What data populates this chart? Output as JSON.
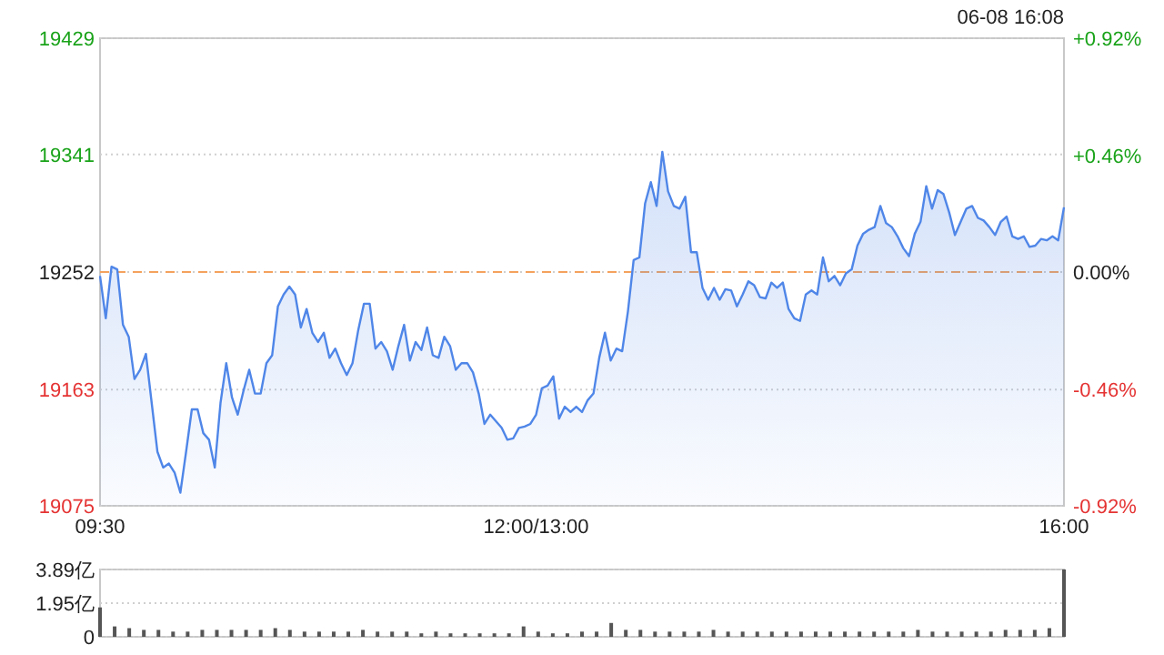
{
  "chart_data": [
    {
      "type": "area",
      "annotations": [
        "06-08 16:08"
      ],
      "categories": [
        "09:30",
        null,
        null,
        null,
        null,
        null,
        null,
        null,
        null,
        null,
        null,
        null,
        null,
        null,
        null,
        null,
        null,
        null,
        null,
        null,
        null,
        null,
        null,
        null,
        null,
        null,
        null,
        null,
        null,
        null,
        null,
        null,
        null,
        null,
        null,
        null,
        null,
        null,
        null,
        null,
        null,
        null,
        null,
        null,
        null,
        null,
        null,
        null,
        null,
        null,
        null,
        null,
        null,
        null,
        null,
        null,
        null,
        null,
        null,
        null,
        null,
        null,
        null,
        null,
        null,
        null,
        null,
        null,
        null,
        null,
        null,
        null,
        null,
        null,
        null,
        null,
        "12:00/13:00",
        null,
        null,
        null,
        null,
        null,
        null,
        null,
        null,
        null,
        null,
        null,
        null,
        null,
        null,
        null,
        null,
        null,
        null,
        null,
        null,
        null,
        null,
        null,
        null,
        null,
        null,
        null,
        null,
        null,
        null,
        null,
        null,
        null,
        null,
        null,
        null,
        null,
        null,
        null,
        null,
        null,
        null,
        null,
        null,
        null,
        null,
        null,
        null,
        null,
        null,
        null,
        null,
        null,
        null,
        null,
        null,
        null,
        null,
        null,
        null,
        null,
        null,
        null,
        null,
        null,
        null,
        null,
        null,
        null,
        null,
        null,
        null,
        null,
        null,
        null,
        null,
        null,
        null,
        null,
        null,
        null,
        null,
        null,
        null,
        null,
        null,
        null,
        null,
        null,
        null,
        null,
        "16:00"
      ],
      "series": [
        {
          "color": "#4f86e8",
          "values": [
            19249,
            19217,
            19256,
            19254,
            19212,
            19203,
            19171,
            19178,
            19190,
            19153,
            19116,
            19104,
            19107,
            19100,
            19085,
            19116,
            19148,
            19148,
            19130,
            19125,
            19104,
            19153,
            19183,
            19157,
            19144,
            19162,
            19178,
            19160,
            19160,
            19183,
            19189,
            19226,
            19235,
            19241,
            19235,
            19210,
            19224,
            19206,
            19199,
            19206,
            19187,
            19194,
            19183,
            19174,
            19183,
            19208,
            19228,
            19228,
            19194,
            19199,
            19192,
            19178,
            19196,
            19212,
            19185,
            19199,
            19193,
            19210,
            19189,
            19187,
            19203,
            19196,
            19178,
            19183,
            19183,
            19176,
            19160,
            19137,
            19144,
            19139,
            19134,
            19125,
            19126,
            19134,
            19135,
            19137,
            19144,
            19164,
            19166,
            19173,
            19141,
            19150,
            19146,
            19150,
            19146,
            19155,
            19160,
            19187,
            19206,
            19185,
            19194,
            19192,
            19222,
            19261,
            19263,
            19304,
            19320,
            19302,
            19343,
            19313,
            19302,
            19300,
            19309,
            19267,
            19267,
            19240,
            19231,
            19240,
            19231,
            19239,
            19238,
            19226,
            19235,
            19245,
            19242,
            19233,
            19232,
            19244,
            19240,
            19244,
            19224,
            19217,
            19215,
            19235,
            19238,
            19235,
            19263,
            19245,
            19249,
            19242,
            19251,
            19254,
            19272,
            19281,
            19284,
            19286,
            19302,
            19289,
            19286,
            19279,
            19270,
            19264,
            19281,
            19290,
            19317,
            19300,
            19314,
            19311,
            19297,
            19280,
            19290,
            19300,
            19302,
            19293,
            19291,
            19286,
            19280,
            19290,
            19294,
            19279,
            19277,
            19279,
            19271,
            19272,
            19277,
            19276,
            19279,
            19276,
            19301
          ]
        }
      ],
      "ylim": [
        19075,
        19429
      ],
      "yticks": [
        19075,
        19163,
        19252,
        19341,
        19429
      ],
      "y2lim": [
        -0.92,
        0.92
      ],
      "y2ticks": [
        {
          "value": -0.92,
          "label": "-0.92%"
        },
        {
          "value": -0.46,
          "label": "-0.46%"
        },
        {
          "value": 0,
          "label": "0.00%"
        },
        {
          "value": 0.46,
          "label": "+0.46%"
        },
        {
          "value": 0.92,
          "label": "+0.92%"
        }
      ],
      "ref_lines": [
        {
          "axis": "y",
          "value": 19252,
          "color": "#f5a25d",
          "line_style": "dashed"
        }
      ],
      "grid": "y"
    },
    {
      "type": "bar",
      "tick_labels": "y",
      "grid": "y",
      "categories": [
        null,
        null,
        null,
        null,
        null,
        null,
        null,
        null,
        null,
        null,
        null,
        null,
        null,
        null,
        null,
        null,
        null,
        null,
        null,
        null,
        null,
        null,
        null,
        null,
        null,
        null,
        null,
        null,
        null,
        null,
        null,
        null,
        null,
        null,
        null,
        null,
        null,
        null,
        null,
        null,
        null,
        null,
        null,
        null,
        null,
        null,
        null,
        null,
        null,
        null,
        null,
        null,
        null,
        null,
        null,
        null,
        null,
        null,
        null,
        null,
        null,
        null,
        null,
        null,
        null,
        null,
        null
      ],
      "values": [
        1.7,
        0.6,
        0.5,
        0.4,
        0.4,
        0.3,
        0.3,
        0.4,
        0.4,
        0.4,
        0.4,
        0.4,
        0.5,
        0.4,
        0.3,
        0.3,
        0.3,
        0.3,
        0.4,
        0.3,
        0.3,
        0.3,
        0.2,
        0.3,
        0.2,
        0.2,
        0.2,
        0.2,
        0.2,
        0.6,
        0.3,
        0.2,
        0.2,
        0.3,
        0.3,
        0.8,
        0.4,
        0.4,
        0.3,
        0.3,
        0.3,
        0.3,
        0.4,
        0.3,
        0.3,
        0.3,
        0.3,
        0.3,
        0.3,
        0.3,
        0.3,
        0.3,
        0.3,
        0.3,
        0.3,
        0.3,
        0.4,
        0.3,
        0.3,
        0.3,
        0.3,
        0.3,
        0.4,
        0.4,
        0.4,
        0.5,
        3.89
      ],
      "color": "#555555",
      "ylim": [
        0,
        3.89
      ],
      "yticks": [
        0,
        {
          "value": 1.95,
          "label": "1.95亿"
        },
        {
          "value": 3.89,
          "label": "3.89亿"
        }
      ]
    }
  ]
}
